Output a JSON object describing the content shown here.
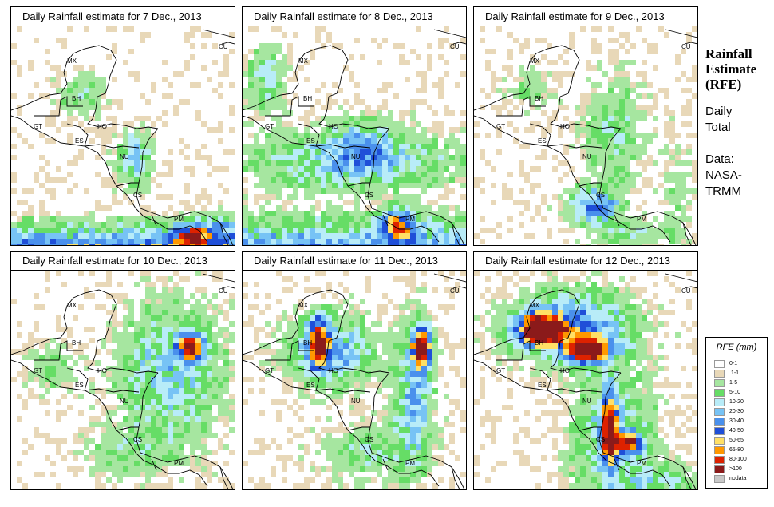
{
  "panels": [
    {
      "title": "Daily Rainfall estimate for  7 Dec., 2013",
      "scene": "p7"
    },
    {
      "title": "Daily Rainfall estimate for  8 Dec., 2013",
      "scene": "p8"
    },
    {
      "title": "Daily Rainfall estimate for  9 Dec., 2013",
      "scene": "p9"
    },
    {
      "title": "Daily Rainfall estimate for  10 Dec., 2013",
      "scene": "p10"
    },
    {
      "title": "Daily Rainfall estimate for  11 Dec., 2013",
      "scene": "p11"
    },
    {
      "title": "Daily Rainfall estimate for  12 Dec., 2013",
      "scene": "p12"
    }
  ],
  "country_labels": [
    "MX",
    "BH",
    "GT",
    "HO",
    "ES",
    "NU",
    "CS",
    "PM",
    "CU"
  ],
  "side": {
    "title_line1": "Rainfall",
    "title_line2": "Estimate",
    "title_line3": "(RFE)",
    "line4": "Daily",
    "line5": "Total",
    "line6": "Data:",
    "line7": "NASA-",
    "line8": "TRMM"
  },
  "legend": {
    "title": "RFE (mm)",
    "items": [
      {
        "label": "0-1",
        "color": "#ffffff"
      },
      {
        "label": ".1-1",
        "color": "#e8d8b8"
      },
      {
        "label": "1-5",
        "color": "#a6e6a0"
      },
      {
        "label": "5-10",
        "color": "#66dd66"
      },
      {
        "label": "10-20",
        "color": "#b8ecf8"
      },
      {
        "label": "20-30",
        "color": "#77c3f5"
      },
      {
        "label": "30-40",
        "color": "#4a90ec"
      },
      {
        "label": "40-50",
        "color": "#1f4fd8"
      },
      {
        "label": "50-65",
        "color": "#ffe066"
      },
      {
        "label": "65-80",
        "color": "#ff9800"
      },
      {
        "label": "80-100",
        "color": "#dd2200"
      },
      {
        "label": ">100",
        "color": "#8b1a1a"
      },
      {
        "label": "nodata",
        "color": "#c8c8c8"
      }
    ]
  }
}
